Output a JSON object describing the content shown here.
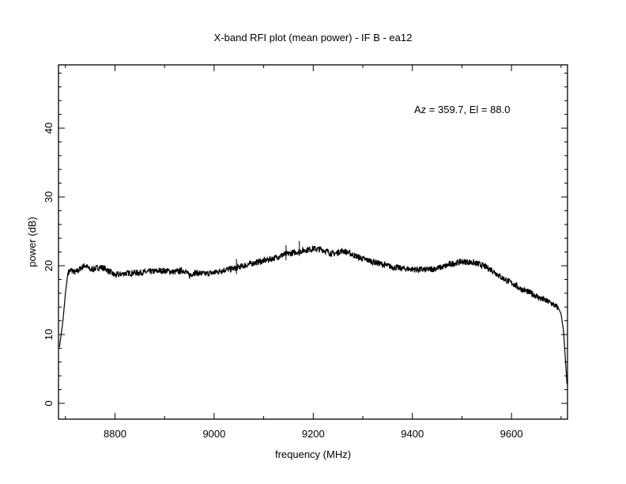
{
  "chart_data": {
    "type": "line",
    "title": "X-band RFI plot (mean power) - IF B - ea12",
    "xlabel": "frequency (MHz)",
    "ylabel": "power (dB)",
    "annotation": "Az = 359.7, El = 88.0",
    "xlim": [
      8686,
      9713
    ],
    "ylim": [
      -2.3,
      49.2
    ],
    "xticks": [
      8800,
      9000,
      9200,
      9400,
      9600
    ],
    "xtick_labels": [
      "8800",
      "9000",
      "9200",
      "9400",
      "9600"
    ],
    "yticks": [
      0,
      10,
      20,
      30,
      40
    ],
    "ytick_labels": [
      "0",
      "10",
      "20",
      "30",
      "40"
    ],
    "grid": false,
    "series": [
      {
        "name": "mean power",
        "x": [
          8688,
          8695,
          8700,
          8705,
          8712,
          8720,
          8730,
          8740,
          8750,
          8760,
          8770,
          8780,
          8790,
          8800,
          8820,
          8850,
          8880,
          8900,
          8920,
          8940,
          8950,
          8960,
          8980,
          9000,
          9020,
          9040,
          9060,
          9080,
          9100,
          9120,
          9140,
          9160,
          9180,
          9200,
          9220,
          9240,
          9260,
          9280,
          9300,
          9320,
          9340,
          9360,
          9380,
          9400,
          9420,
          9440,
          9460,
          9480,
          9500,
          9520,
          9540,
          9560,
          9580,
          9600,
          9620,
          9640,
          9660,
          9680,
          9695,
          9700,
          9705,
          9710,
          9712
        ],
        "y": [
          8.2,
          12,
          16,
          19,
          19.4,
          19.0,
          19.6,
          20.1,
          19.4,
          19.6,
          19.8,
          19.6,
          19.1,
          18.6,
          18.9,
          19.0,
          19.2,
          19.3,
          19.1,
          19.3,
          18.6,
          19.0,
          18.8,
          19.0,
          19.4,
          19.6,
          20.0,
          20.4,
          20.7,
          21.1,
          21.6,
          21.9,
          22.2,
          22.5,
          22.3,
          21.7,
          22.2,
          21.6,
          21.0,
          20.6,
          20.2,
          19.8,
          19.6,
          19.5,
          19.4,
          19.5,
          19.8,
          20.3,
          20.6,
          20.5,
          20.1,
          19.4,
          18.3,
          17.5,
          16.6,
          16.0,
          15.2,
          14.6,
          13.8,
          13.0,
          10.5,
          5.0,
          2.8
        ]
      }
    ],
    "spikes": [
      {
        "x": 9045,
        "y": 21.0
      },
      {
        "x": 9145,
        "y": 23.0
      },
      {
        "x": 9172,
        "y": 23.6
      }
    ]
  }
}
